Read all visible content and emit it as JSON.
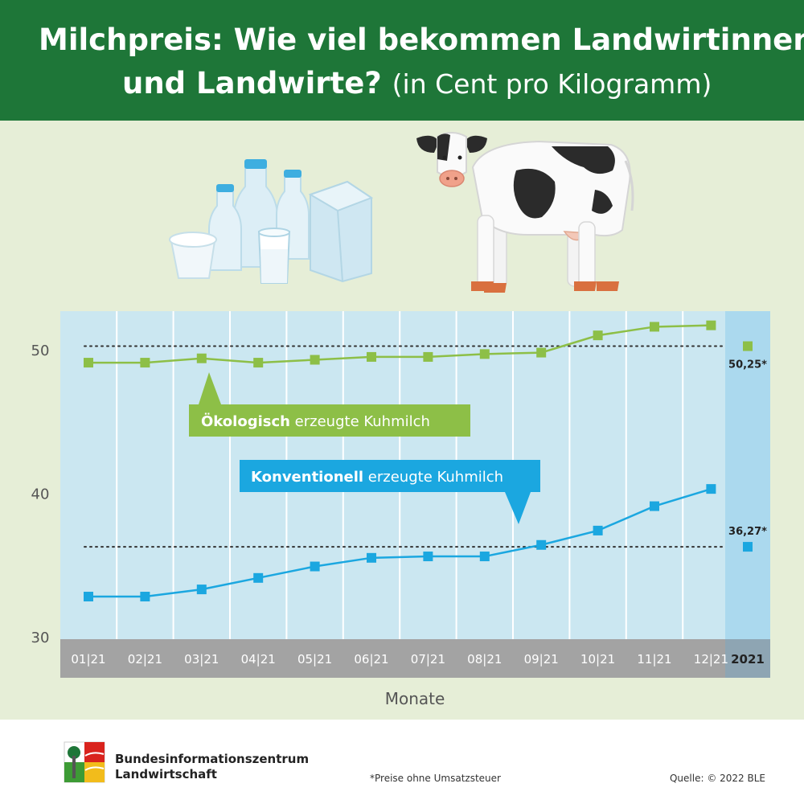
{
  "header": {
    "title_line1": "Milchpreis: Wie viel bekommen Landwirtinnen",
    "title_line2": "und Landwirte?",
    "title_unit": "(in Cent pro Kilogramm)"
  },
  "footer": {
    "org_line1": "Bundesinformationszentrum",
    "org_line2": "Landwirtschaft",
    "footnote": "*Preise ohne Umsatzsteuer",
    "source": "Quelle: © 2022 BLE"
  },
  "chart_data": {
    "type": "line",
    "title": "Milchpreis: Wie viel bekommen Landwirtinnen und Landwirte? (in Cent pro Kilogramm)",
    "xlabel": "Monate",
    "ylabel": "",
    "ylim": [
      30,
      52
    ],
    "yticks": [
      30,
      40,
      50
    ],
    "categories": [
      "01|21",
      "02|21",
      "03|21",
      "04|21",
      "05|21",
      "06|21",
      "07|21",
      "08|21",
      "09|21",
      "10|21",
      "11|21",
      "12|21"
    ],
    "annual_label": "2021",
    "grid": true,
    "series": [
      {
        "label_bold": "Ökologisch",
        "label_rest": " erzeugte Kuhmilch",
        "color": "#8dbf47",
        "values": [
          49.1,
          49.1,
          49.4,
          49.1,
          49.3,
          49.5,
          49.5,
          49.7,
          49.8,
          51.0,
          51.6,
          51.7
        ],
        "annual": 50.25,
        "annual_label": "50,25*"
      },
      {
        "label_bold": "Konventionell",
        "label_rest": " erzeugte Kuhmilch",
        "color": "#1ba7e0",
        "values": [
          32.8,
          32.8,
          33.3,
          34.1,
          34.9,
          35.5,
          35.6,
          35.6,
          36.4,
          37.4,
          39.1,
          40.3
        ],
        "annual": 36.27,
        "annual_label": "36,27*"
      }
    ]
  },
  "colors": {
    "header_bg": "#1e7638",
    "panel_bg": "#e6eed7",
    "plot_bg": "#cbe7f1",
    "annual_bg": "#abd9ee",
    "axis_bar": "#a3a3a3"
  },
  "icons": [
    "milk-products-icon",
    "cow-icon",
    "logo-icon"
  ]
}
